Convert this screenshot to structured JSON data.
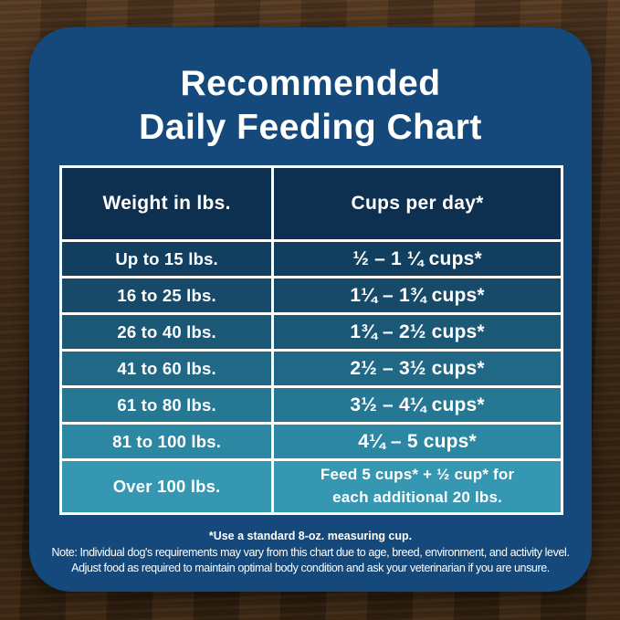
{
  "title": {
    "line1": "Recommended",
    "line2": "Daily Feeding Chart"
  },
  "table": {
    "headers": {
      "weight": "Weight in lbs.",
      "cups": "Cups per day*"
    },
    "rows": [
      {
        "weight": "Up to 15 lbs.",
        "cups": "½ – 1 ¼ cups*",
        "bg": "#123F5F"
      },
      {
        "weight": "16 to 25 lbs.",
        "cups": "1¼ – 1¾ cups*",
        "bg": "#174A69"
      },
      {
        "weight": "26 to 40 lbs.",
        "cups": "1¾ – 2½ cups*",
        "bg": "#1B5876"
      },
      {
        "weight": "41 to 60 lbs.",
        "cups": "2½ – 3½ cups*",
        "bg": "#206885"
      },
      {
        "weight": "61 to 80 lbs.",
        "cups": "3½ – 4¼ cups*",
        "bg": "#267794"
      },
      {
        "weight": "81 to 100 lbs.",
        "cups": "4¼ – 5 cups*",
        "bg": "#2C87A2"
      },
      {
        "weight": "Over 100 lbs.",
        "cups_line1": "Feed 5 cups* + ½ cup* for",
        "cups_line2": "each additional 20 lbs.",
        "bg": "#3697B2"
      }
    ]
  },
  "footnotes": {
    "measuring_cup": "*Use a standard 8-oz. measuring cup.",
    "note_line1": "Note: Individual dog's requirements may vary from this chart due to age, breed, environment, and activity level.",
    "note_line2": "Adjust food as required to maintain optimal body condition and ask your veterinarian if you are unsure."
  },
  "colors": {
    "card_background": "#15497B",
    "header_background": "#0D3050",
    "table_border": "#FFFFFF",
    "text": "#FFFFFF",
    "wood_dark": "#2A1B0D",
    "wood_light": "#5F4227"
  },
  "chart_data": {
    "type": "table",
    "title": "Recommended Daily Feeding Chart",
    "columns": [
      "Weight in lbs.",
      "Cups per day*"
    ],
    "rows": [
      [
        "Up to 15 lbs.",
        "½ – 1 ¼ cups*"
      ],
      [
        "16 to 25 lbs.",
        "1¼ – 1¾ cups*"
      ],
      [
        "26 to 40 lbs.",
        "1¾ – 2½ cups*"
      ],
      [
        "41 to 60 lbs.",
        "2½ – 3½ cups*"
      ],
      [
        "61 to 80 lbs.",
        "3½ – 4¼ cups*"
      ],
      [
        "81 to 100 lbs.",
        "4¼ – 5 cups*"
      ],
      [
        "Over 100 lbs.",
        "Feed 5 cups* + ½ cup* for each additional 20 lbs."
      ]
    ],
    "footnote": "*Use a standard 8-oz. measuring cup.",
    "notes": "Individual dog's requirements may vary from this chart due to age, breed, environment, and activity level. Adjust food as required to maintain optimal body condition and ask your veterinarian if you are unsure."
  }
}
